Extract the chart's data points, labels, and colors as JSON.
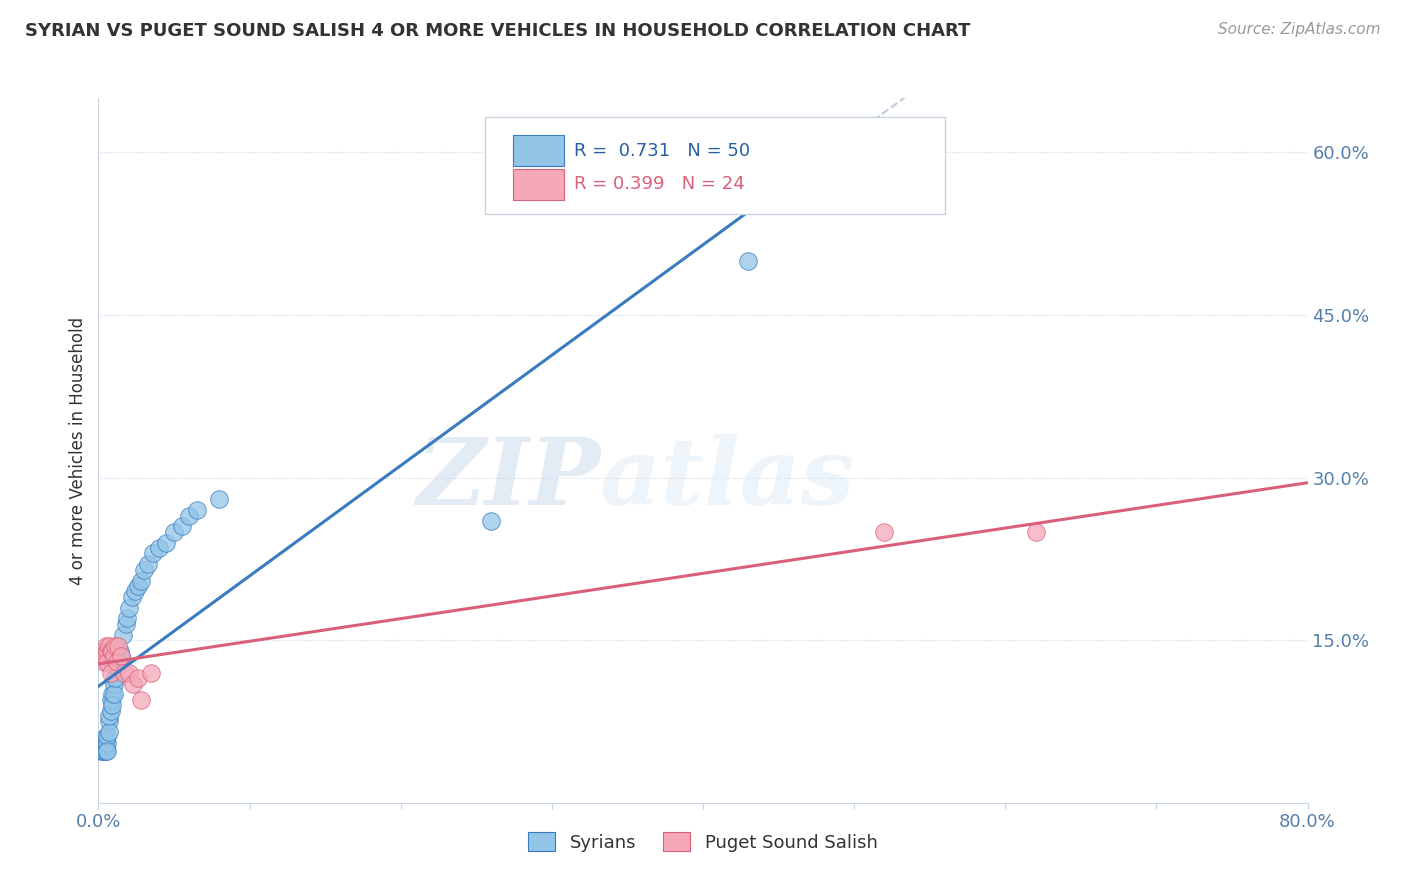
{
  "title": "SYRIAN VS PUGET SOUND SALISH 4 OR MORE VEHICLES IN HOUSEHOLD CORRELATION CHART",
  "source": "Source: ZipAtlas.com",
  "ylabel": "4 or more Vehicles in Household",
  "legend_bottom": [
    "Syrians",
    "Puget Sound Salish"
  ],
  "xlim": [
    0.0,
    0.8
  ],
  "ylim": [
    0.0,
    0.65
  ],
  "blue_color": "#92c5e8",
  "pink_color": "#f4a8b8",
  "blue_line_color": "#3a7bbf",
  "pink_line_color": "#d9607a",
  "dashed_line_color": "#b0bcd0",
  "watermark_zip": "ZIP",
  "watermark_atlas": "atlas",
  "R_blue": 0.731,
  "N_blue": 50,
  "R_pink": 0.399,
  "N_pink": 24,
  "blue_scatter_x": [
    0.002,
    0.002,
    0.003,
    0.003,
    0.003,
    0.004,
    0.004,
    0.004,
    0.004,
    0.005,
    0.005,
    0.005,
    0.005,
    0.006,
    0.006,
    0.006,
    0.007,
    0.007,
    0.007,
    0.008,
    0.008,
    0.009,
    0.009,
    0.01,
    0.01,
    0.011,
    0.012,
    0.013,
    0.014,
    0.015,
    0.016,
    0.018,
    0.019,
    0.02,
    0.022,
    0.024,
    0.026,
    0.028,
    0.03,
    0.033,
    0.036,
    0.04,
    0.045,
    0.05,
    0.055,
    0.06,
    0.065,
    0.08,
    0.26,
    0.43
  ],
  "blue_scatter_y": [
    0.05,
    0.048,
    0.055,
    0.05,
    0.048,
    0.06,
    0.052,
    0.055,
    0.048,
    0.058,
    0.05,
    0.052,
    0.048,
    0.055,
    0.062,
    0.048,
    0.075,
    0.065,
    0.08,
    0.085,
    0.095,
    0.1,
    0.09,
    0.11,
    0.1,
    0.115,
    0.125,
    0.13,
    0.14,
    0.135,
    0.155,
    0.165,
    0.17,
    0.18,
    0.19,
    0.195,
    0.2,
    0.205,
    0.215,
    0.22,
    0.23,
    0.235,
    0.24,
    0.25,
    0.255,
    0.265,
    0.27,
    0.28,
    0.26,
    0.5
  ],
  "pink_scatter_x": [
    0.003,
    0.004,
    0.004,
    0.005,
    0.005,
    0.006,
    0.006,
    0.007,
    0.008,
    0.008,
    0.009,
    0.01,
    0.011,
    0.012,
    0.013,
    0.015,
    0.017,
    0.02,
    0.023,
    0.026,
    0.028,
    0.035,
    0.52,
    0.62
  ],
  "pink_scatter_y": [
    0.135,
    0.14,
    0.13,
    0.145,
    0.135,
    0.14,
    0.13,
    0.145,
    0.14,
    0.12,
    0.14,
    0.135,
    0.145,
    0.13,
    0.145,
    0.135,
    0.12,
    0.12,
    0.11,
    0.115,
    0.095,
    0.12,
    0.25,
    0.25
  ]
}
